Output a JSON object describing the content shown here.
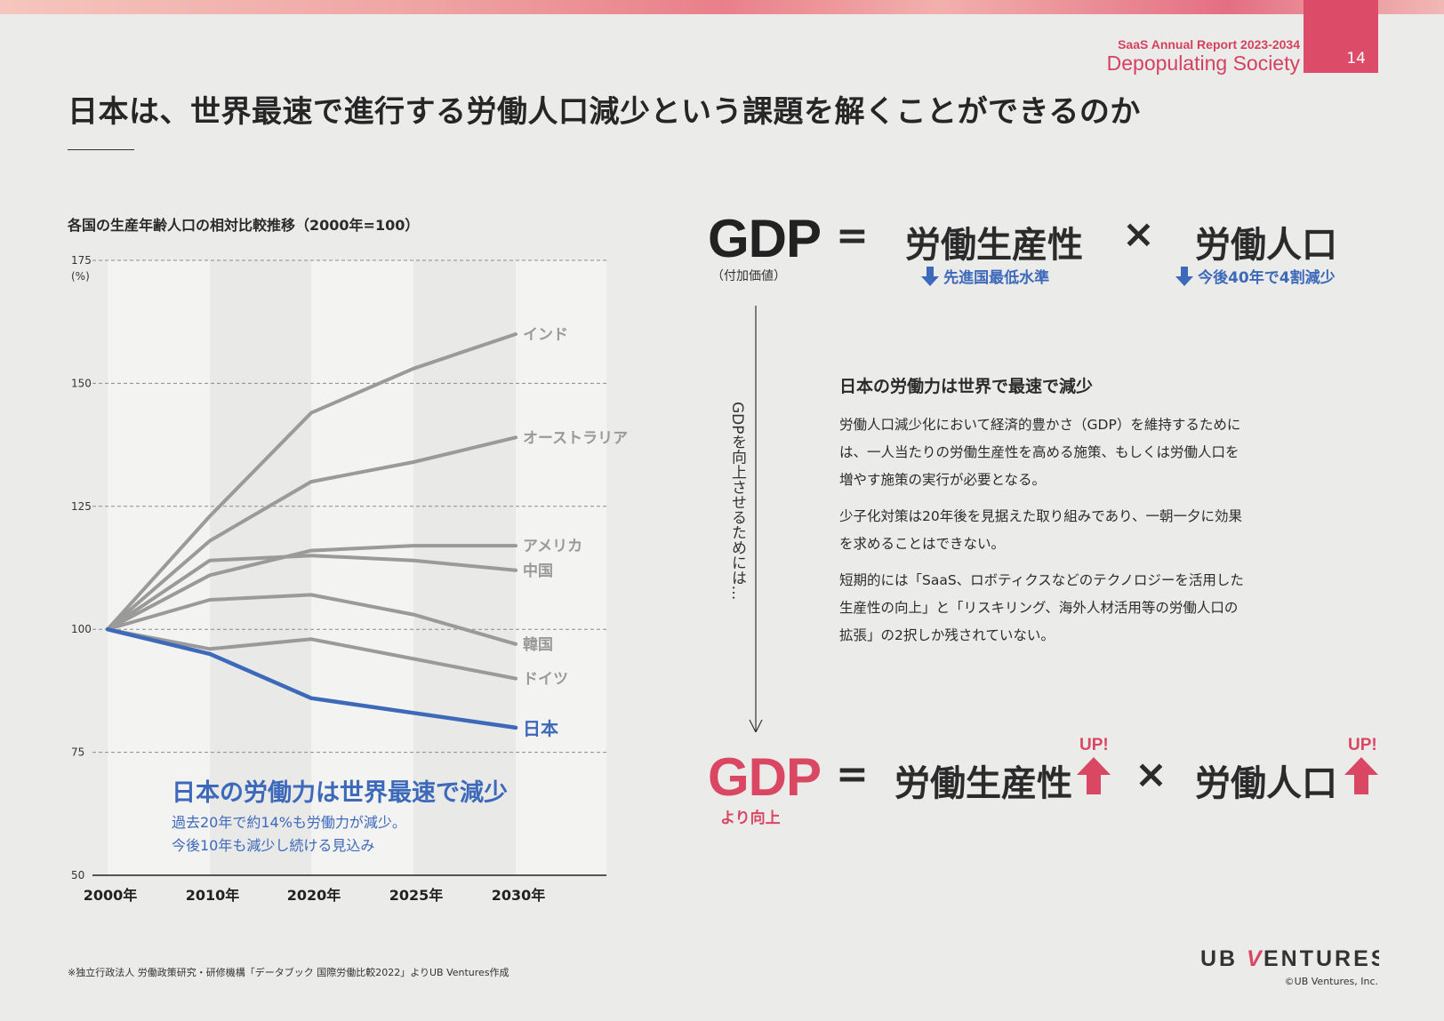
{
  "header": {
    "report_subtitle": "SaaS Annual Report 2023-2034",
    "report_title": "Depopulating Society",
    "page_number": "14",
    "main_title": "日本は、世界最速で進行する労働人口減少という課題を解くことができるのか"
  },
  "colors": {
    "accent_red": "#d94763",
    "accent_blue": "#3c69ba",
    "line_gray": "#9a9a9a"
  },
  "chart_data": {
    "type": "line",
    "title": "各国の生産年齢人口の相対比較推移（2000年=100）",
    "ylabel": "(%)",
    "categories": [
      "2000年",
      "2010年",
      "2020年",
      "2025年",
      "2030年"
    ],
    "yticks": [
      50,
      75,
      100,
      125,
      150,
      175
    ],
    "ylim": [
      50,
      175
    ],
    "series": [
      {
        "name": "インド",
        "values": [
          100,
          123,
          144,
          153,
          160
        ],
        "highlight": false
      },
      {
        "name": "オーストラリア",
        "values": [
          100,
          118,
          130,
          134,
          139
        ],
        "highlight": false
      },
      {
        "name": "アメリカ",
        "values": [
          100,
          111,
          116,
          117,
          117
        ],
        "highlight": false
      },
      {
        "name": "中国",
        "values": [
          100,
          114,
          115,
          114,
          112
        ],
        "highlight": false
      },
      {
        "name": "韓国",
        "values": [
          100,
          106,
          107,
          103,
          97
        ],
        "highlight": false
      },
      {
        "name": "ドイツ",
        "values": [
          100,
          96,
          98,
          94,
          90
        ],
        "highlight": false
      },
      {
        "name": "日本",
        "values": [
          100,
          95,
          86,
          83,
          80
        ],
        "highlight": true
      }
    ],
    "annotation": {
      "headline": "日本の労働力は世界最速で減少",
      "line1": "過去20年で約14%も労働力が減少。",
      "line2": "今後10年も減少し続ける見込み"
    }
  },
  "equation1": {
    "gdp": "GDP",
    "gdp_sub": "（付加価値）",
    "eq": "=",
    "term1": "労働生産性",
    "term1_sub": "先進国最低水準",
    "times": "×",
    "term2": "労働人口",
    "term2_sub": "今後40年で4割減少"
  },
  "vertical_text": "GDPを向上させるためには…",
  "section": {
    "heading": "日本の労働力は世界で最速で減少",
    "p1": "労働人口減少化において経済的豊かさ（GDP）を維持するためには、一人当たりの労働生産性を高める施策、もしくは労働人口を増やす施策の実行が必要となる。",
    "p2": "少子化対策は20年後を見据えた取り組みであり、一朝一夕に効果を求めることはできない。",
    "p3": "短期的には「SaaS、ロボティクスなどのテクノロジーを活用した生産性の向上」と「リスキリング、海外人材活用等の労働人口の拡張」の2択しか残されていない。"
  },
  "equation2": {
    "gdp": "GDP",
    "gdp_sub": "より向上",
    "eq": "=",
    "term1": "労働生産性",
    "up1": "UP!",
    "times": "×",
    "term2": "労働人口",
    "up2": "UP!"
  },
  "footer": {
    "source": "※独立行政法人 労働政策研究・研修機構「データブック 国際労働比較2022」よりUB Ventures作成",
    "logo_ub": "UB",
    "logo_v": "V",
    "logo_rest": "ENTURES",
    "copyright": "©UB Ventures, Inc."
  }
}
